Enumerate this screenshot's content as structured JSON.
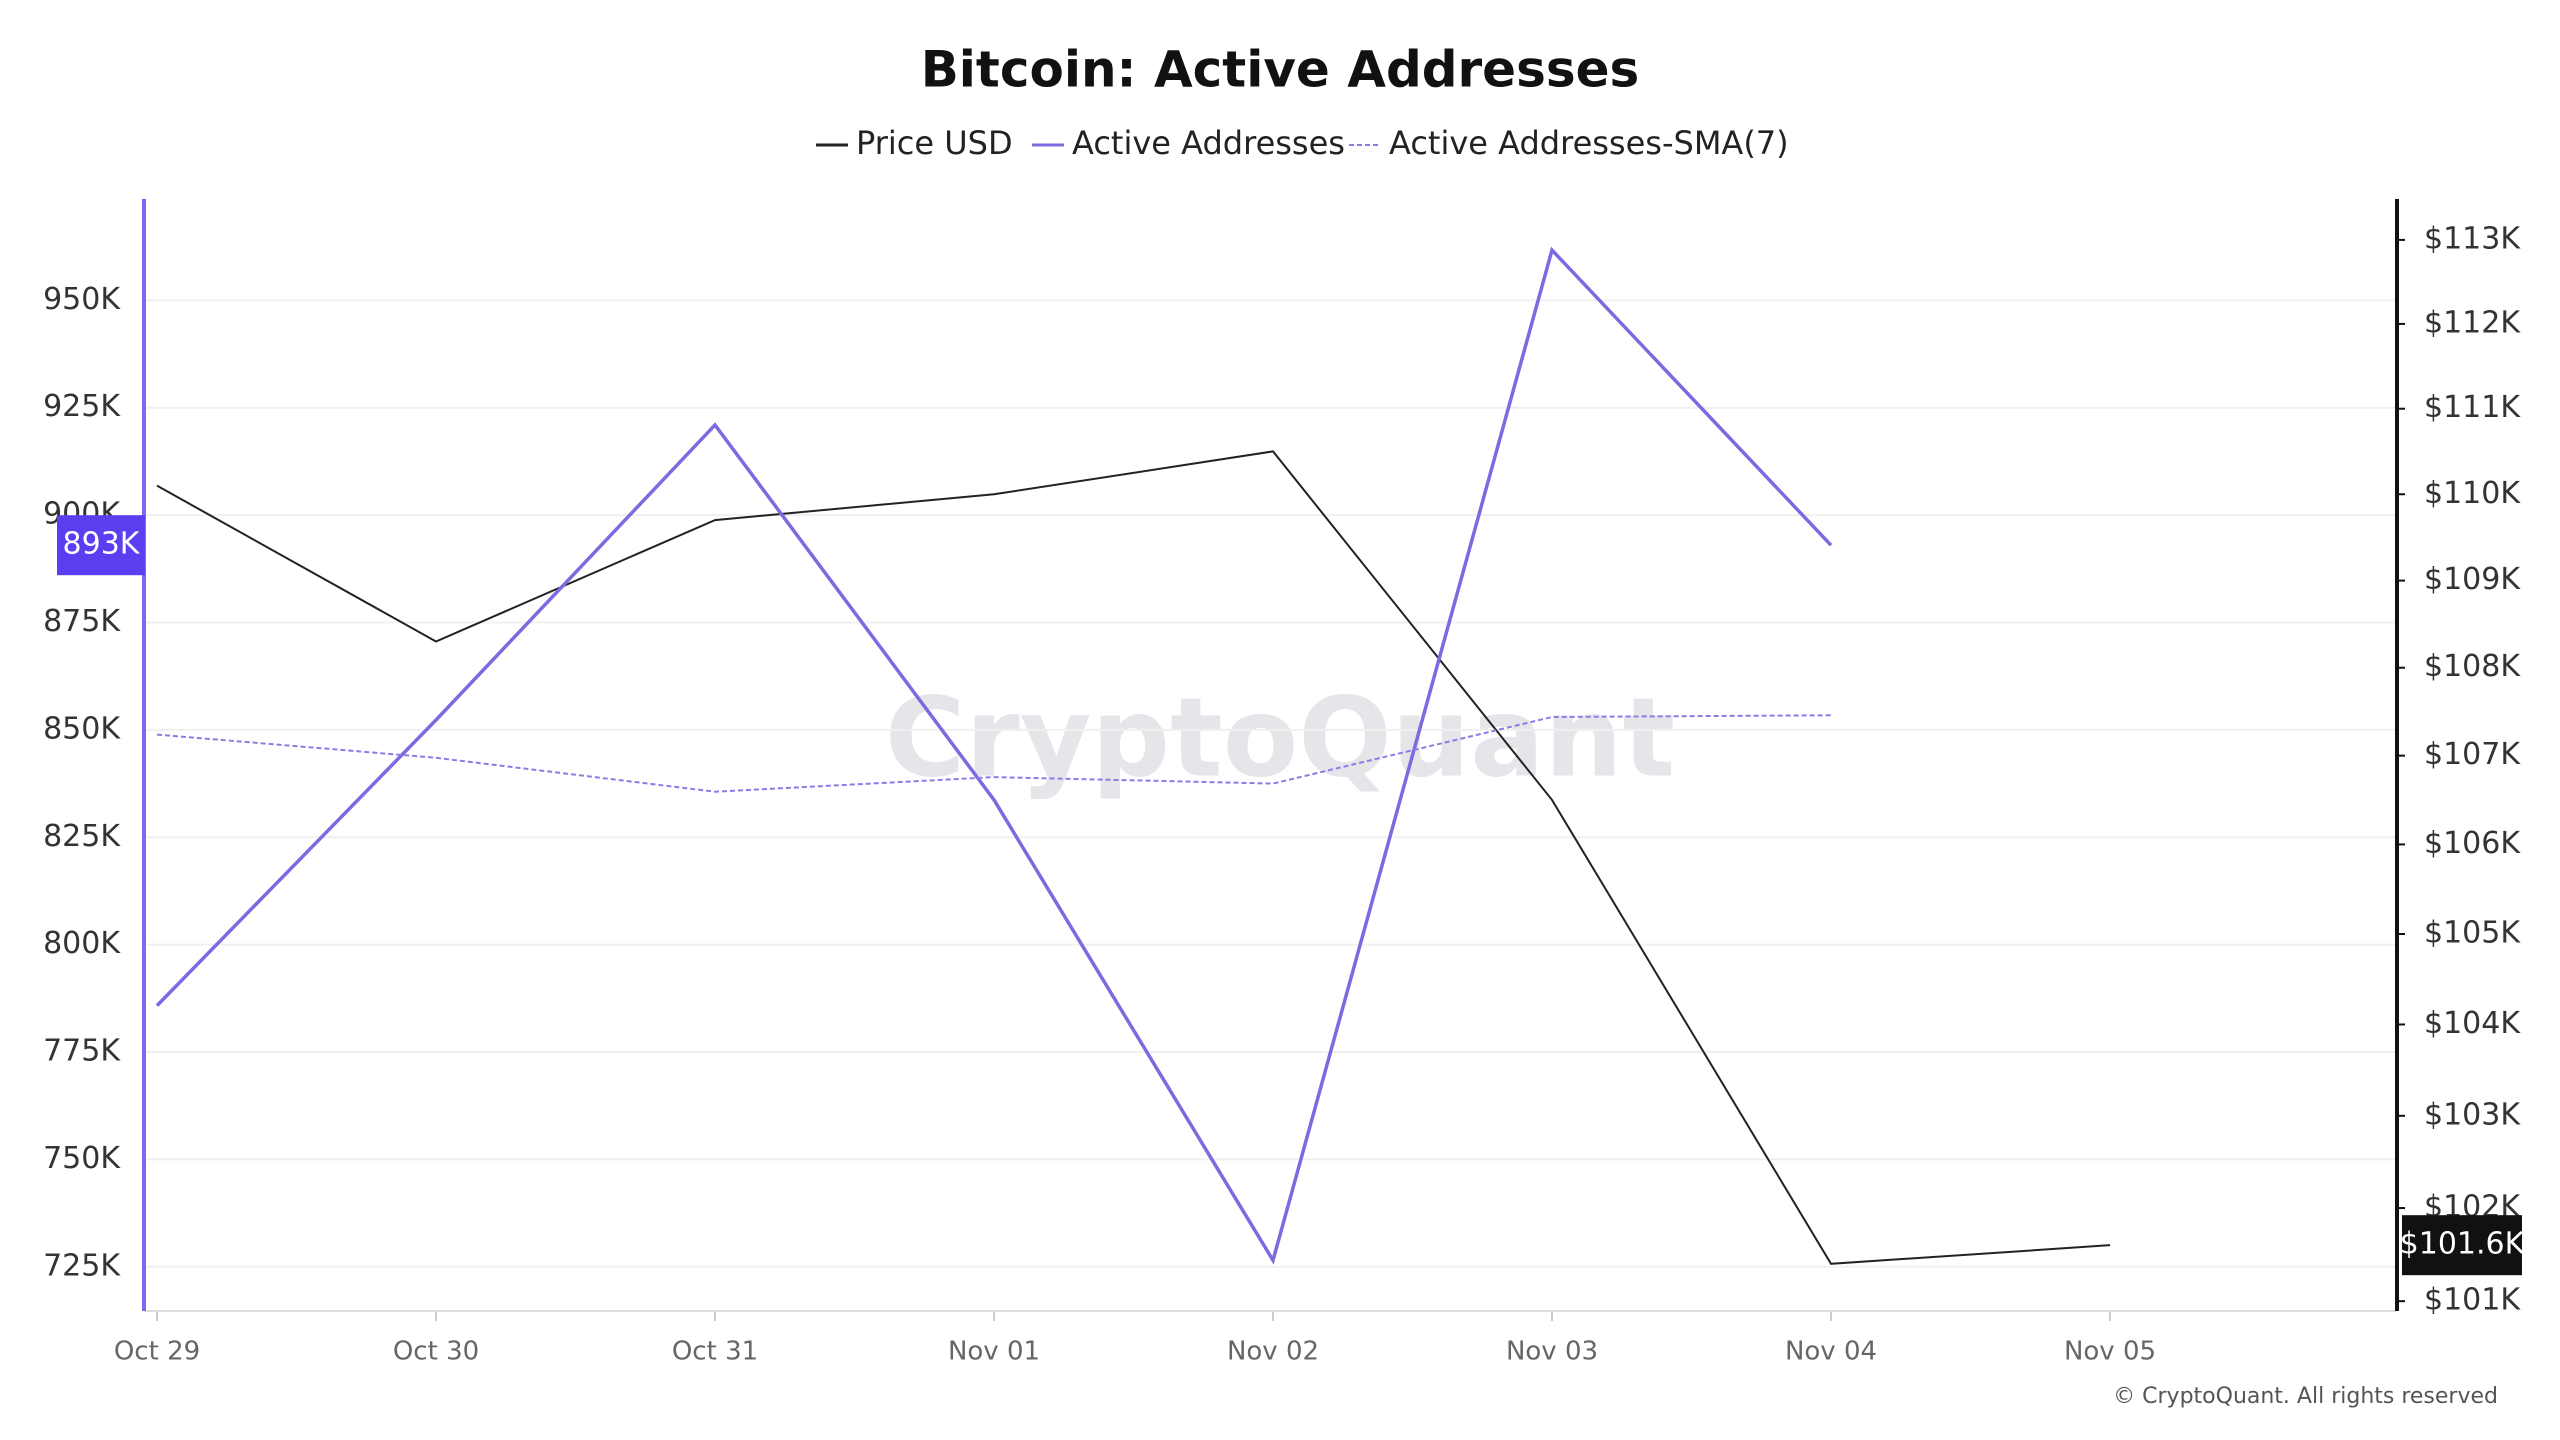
{
  "chart_data": {
    "type": "line",
    "title": "Bitcoin: Active Addresses",
    "watermark": "CryptoQuant",
    "credit": "© CryptoQuant. All rights reserved",
    "categories": [
      "Oct 29",
      "Oct 30",
      "Oct 31",
      "Nov 01",
      "Nov 02",
      "Nov 03",
      "Nov 04",
      "Nov 05"
    ],
    "series": [
      {
        "name": "Price USD",
        "color": "#222222",
        "axis": "y2",
        "values": [
          110100,
          108300,
          109700,
          110000,
          110500,
          106500,
          101400,
          101600
        ],
        "value_labels": [
          null,
          null,
          null,
          null,
          null,
          null,
          null,
          "$101.6K"
        ]
      },
      {
        "name": "Active Addresses",
        "color": "#7b6be0",
        "values": [
          785800,
          852300,
          921000,
          833700,
          726500,
          961700,
          893000,
          null
        ],
        "value_labels": [
          null,
          null,
          null,
          null,
          null,
          null,
          "893K",
          null
        ]
      },
      {
        "name": "Active Addresses-SMA(7)",
        "color": "#8a7de6",
        "dashed": true,
        "values": [
          848900,
          843500,
          835600,
          839000,
          837500,
          853000,
          853400,
          null
        ]
      }
    ],
    "ylim": [
      714700,
      973600
    ],
    "yticks": [
      {
        "value": 725000,
        "label": "725K"
      },
      {
        "value": 750000,
        "label": "750K"
      },
      {
        "value": 775000,
        "label": "775K"
      },
      {
        "value": 800000,
        "label": "800K"
      },
      {
        "value": 825000,
        "label": "825K"
      },
      {
        "value": 850000,
        "label": "850K"
      },
      {
        "value": 875000,
        "label": "875K"
      },
      {
        "value": 900000,
        "label": "900K"
      },
      {
        "value": 925000,
        "label": "925K"
      },
      {
        "value": 950000,
        "label": "950K"
      }
    ],
    "y2lim": [
      100895,
      113490
    ],
    "y2log": true,
    "y2ticks": [
      {
        "value": 101000,
        "label": "$101K"
      },
      {
        "value": 102000,
        "label": "$102K"
      },
      {
        "value": 103000,
        "label": "$103K"
      },
      {
        "value": 104000,
        "label": "$104K"
      },
      {
        "value": 105000,
        "label": "$105K"
      },
      {
        "value": 106000,
        "label": "$106K"
      },
      {
        "value": 107000,
        "label": "$107K"
      },
      {
        "value": 108000,
        "label": "$108K"
      },
      {
        "value": 109000,
        "label": "$109K"
      },
      {
        "value": 110000,
        "label": "$110K"
      },
      {
        "value": 111000,
        "label": "$111K"
      },
      {
        "value": 112000,
        "label": "$112K"
      },
      {
        "value": 113000,
        "label": "$113K"
      }
    ],
    "grid": true
  }
}
